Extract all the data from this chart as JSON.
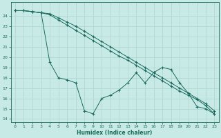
{
  "xlabel": "Humidex (Indice chaleur)",
  "background_color": "#c8eae6",
  "grid_color": "#b0d8d4",
  "line_color": "#1a6b5e",
  "xlim": [
    -0.5,
    23.5
  ],
  "ylim": [
    13.7,
    25.3
  ],
  "yticks": [
    14,
    15,
    16,
    17,
    18,
    19,
    20,
    21,
    22,
    23,
    24
  ],
  "xticks": [
    0,
    1,
    2,
    3,
    4,
    5,
    6,
    7,
    8,
    9,
    10,
    11,
    12,
    13,
    14,
    15,
    16,
    17,
    18,
    19,
    20,
    21,
    22,
    23
  ],
  "series": [
    {
      "x": [
        0,
        1,
        2,
        3,
        4,
        5,
        6,
        7,
        8,
        9,
        10,
        11,
        12,
        13,
        14,
        15,
        16,
        17,
        18,
        19,
        20,
        21,
        22,
        23
      ],
      "y": [
        24.5,
        24.5,
        24.4,
        24.3,
        24.2,
        23.8,
        23.4,
        23.0,
        22.5,
        22.0,
        21.5,
        21.0,
        20.5,
        20.0,
        19.5,
        19.0,
        18.5,
        18.0,
        17.5,
        17.0,
        16.5,
        16.0,
        15.5,
        14.8
      ]
    },
    {
      "x": [
        0,
        1,
        2,
        3,
        4,
        5,
        6,
        7,
        8,
        9,
        10,
        11,
        12,
        13,
        14,
        15,
        16,
        17,
        18,
        19,
        20,
        21,
        22,
        23
      ],
      "y": [
        24.5,
        24.5,
        24.4,
        24.3,
        24.1,
        23.6,
        23.1,
        22.6,
        22.1,
        21.6,
        21.1,
        20.6,
        20.1,
        19.7,
        19.2,
        18.7,
        18.2,
        17.7,
        17.2,
        16.7,
        16.3,
        15.9,
        15.3,
        14.5
      ]
    },
    {
      "x": [
        0,
        1,
        2,
        3,
        4,
        5,
        6,
        7,
        8,
        9,
        10,
        11,
        12,
        13,
        14,
        15,
        16,
        17,
        18,
        19,
        20,
        21,
        22,
        23
      ],
      "y": [
        24.5,
        24.5,
        24.4,
        24.3,
        19.5,
        18.0,
        17.8,
        17.5,
        14.8,
        14.5,
        16.0,
        16.3,
        16.8,
        17.5,
        18.5,
        17.5,
        18.5,
        19.0,
        18.8,
        17.5,
        16.5,
        15.2,
        15.0,
        14.5
      ]
    }
  ]
}
